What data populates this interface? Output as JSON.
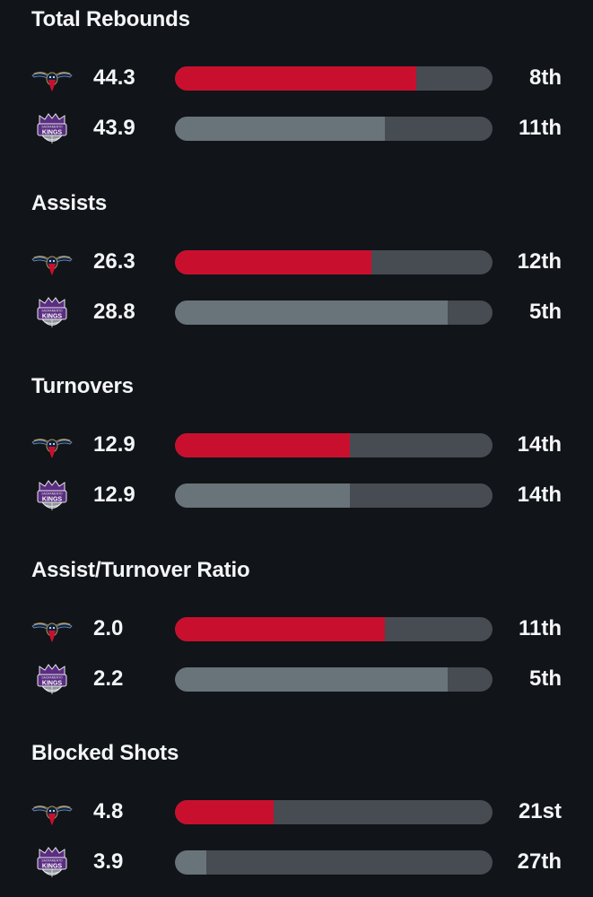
{
  "colors": {
    "background": "#111418",
    "pelicans_bar": "#c8102e",
    "kings_bar": "#69737a",
    "bar_track": "#474b52"
  },
  "teams": {
    "pelicans": {
      "logo_icon": "pelicans-logo-icon"
    },
    "kings": {
      "logo_icon": "kings-logo-icon",
      "logo_text_top": "SACRAMENTO",
      "logo_text": "KINGS"
    }
  },
  "sections": [
    {
      "title": "Total Rebounds",
      "rows": [
        {
          "team": "pelicans",
          "value": "44.3",
          "rank": "8th",
          "fill": 0.76
        },
        {
          "team": "kings",
          "value": "43.9",
          "rank": "11th",
          "fill": 0.66
        }
      ]
    },
    {
      "title": "Assists",
      "rows": [
        {
          "team": "pelicans",
          "value": "26.3",
          "rank": "12th",
          "fill": 0.62
        },
        {
          "team": "kings",
          "value": "28.8",
          "rank": "5th",
          "fill": 0.86
        }
      ]
    },
    {
      "title": "Turnovers",
      "rows": [
        {
          "team": "pelicans",
          "value": "12.9",
          "rank": "14th",
          "fill": 0.55
        },
        {
          "team": "kings",
          "value": "12.9",
          "rank": "14th",
          "fill": 0.55
        }
      ]
    },
    {
      "title": "Assist/Turnover Ratio",
      "rows": [
        {
          "team": "pelicans",
          "value": "2.0",
          "rank": "11th",
          "fill": 0.66
        },
        {
          "team": "kings",
          "value": "2.2",
          "rank": "5th",
          "fill": 0.86
        }
      ]
    },
    {
      "title": "Blocked Shots",
      "rows": [
        {
          "team": "pelicans",
          "value": "4.8",
          "rank": "21st",
          "fill": 0.31
        },
        {
          "team": "kings",
          "value": "3.9",
          "rank": "27th",
          "fill": 0.1
        }
      ]
    }
  ]
}
